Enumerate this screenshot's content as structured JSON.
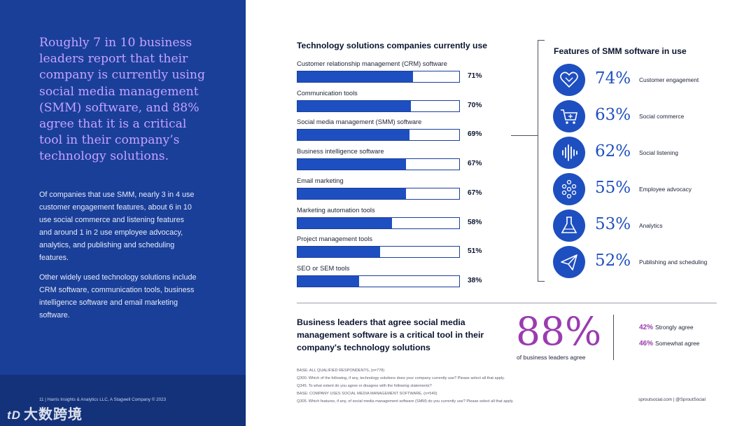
{
  "left_panel": {
    "headline": "Roughly 7 in 10 business leaders report that their company is currently using social media management (SMM) software, and 88% agree that it is a critical tool in their company’s technology solutions.",
    "paragraph1": "Of companies that use SMM, nearly 3 in 4 use customer engagement features, about 6 in 10 use social commerce and listening features and around 1 in 2 use employee advocacy, analytics, and publishing and scheduling features.",
    "paragraph2": "Other widely used technology solutions include CRM software, communication tools, business intelligence software and email marketing software.",
    "footer": "11  |  Harris Insights & Analytics LLC, A Stagwell Company © 2023",
    "watermark_logo": "tD",
    "watermark_text": "大数跨境"
  },
  "chart_data": {
    "type": "bar",
    "title": "Technology solutions companies currently use",
    "orientation": "horizontal",
    "xlim": [
      0,
      100
    ],
    "categories": [
      "Customer relationship management (CRM) software",
      "Communication tools",
      "Social media management (SMM) software",
      "Business intelligence software",
      "Email marketing",
      "Marketing automation tools",
      "Project management tools",
      "SEO or SEM tools"
    ],
    "values": [
      71,
      70,
      69,
      67,
      67,
      58,
      51,
      38
    ],
    "value_labels": [
      "71%",
      "70%",
      "69%",
      "67%",
      "67%",
      "58%",
      "51%",
      "38%"
    ],
    "colors": {
      "fill": "#1e4fc0",
      "border": "#1b3f9c"
    }
  },
  "features": {
    "title": "Features of SMM software in use",
    "items": [
      {
        "icon": "heart-icon",
        "pct": "74%",
        "label": "Customer engagement"
      },
      {
        "icon": "cart-icon",
        "pct": "63%",
        "label": "Social commerce"
      },
      {
        "icon": "soundwave-icon",
        "pct": "62%",
        "label": "Social listening"
      },
      {
        "icon": "network-dots-icon",
        "pct": "55%",
        "label": "Employee advocacy"
      },
      {
        "icon": "flask-icon",
        "pct": "53%",
        "label": "Analytics"
      },
      {
        "icon": "paper-plane-icon",
        "pct": "52%",
        "label": "Publishing and scheduling"
      }
    ]
  },
  "agreement": {
    "heading": "Business leaders that agree social media management software is a critical tool in their company's technology solutions",
    "big_value": "88%",
    "big_caption": "of business leaders agree",
    "rows": [
      {
        "pct": "42%",
        "label": "Strongly agree"
      },
      {
        "pct": "46%",
        "label": "Somewhat agree"
      }
    ]
  },
  "base_notes": [
    "BASE: ALL QUALIFIED RESPONDENTS, (n=778)",
    "Q300. Which of the following, if any, technology solutions does your company currently use? Please select all that apply.",
    "Q345. To what extent do you agree or disagree with the following statements?",
    "BASE: COMPANY USES SOCIAL MEDIA MANAGEMENT SOFTWARE, (n=540)",
    "Q305. Which features, if any, of social media management software (SMM) do you currently use? Please select all that apply."
  ],
  "site": "sproutsocial.com  |  @SproutSocial",
  "colors": {
    "panel_blue": "#1a3f99",
    "accent_blue": "#1e4fc0",
    "accent_purple": "#9b3bb0",
    "headline_lilac": "#c4a3ff"
  }
}
